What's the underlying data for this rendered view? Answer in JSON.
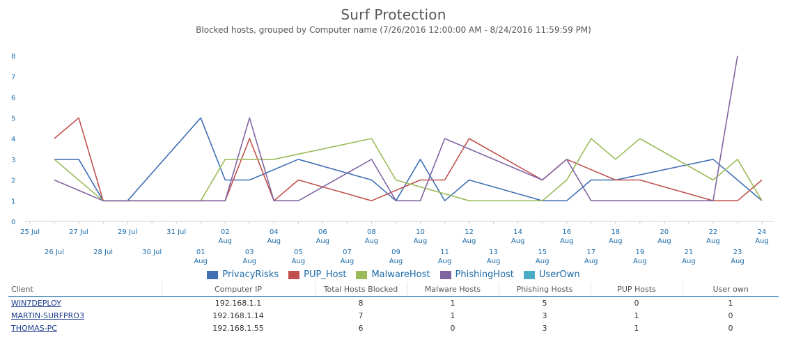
{
  "title": "Surf Protection",
  "subtitle": "Blocked hosts, grouped by Computer name (7/26/2016 12:00:00 AM - 8/24/2016 11:59:59 PM)",
  "colors": {
    "PrivacyRisks": "#3f6fb5",
    "PUP_Host": "#c0504d",
    "MalwareHost": "#9bbb59",
    "PhishingHost": "#8064a2",
    "UserOwn": "#4bacc6",
    "axis_text": "#1a6aa8"
  },
  "chart_data": {
    "type": "line",
    "title": "Surf Protection",
    "subtitle": "Blocked hosts, grouped by Computer name (7/26/2016 12:00:00 AM - 8/24/2016 11:59:59 PM)",
    "x": [
      "25 Jul",
      "26 Jul",
      "27 Jul",
      "28 Jul",
      "29 Jul",
      "30 Jul",
      "31 Jul",
      "01 Aug",
      "02 Aug",
      "03 Aug",
      "04 Aug",
      "05 Aug",
      "06 Aug",
      "07 Aug",
      "08 Aug",
      "09 Aug",
      "10 Aug",
      "11 Aug",
      "12 Aug",
      "13 Aug",
      "14 Aug",
      "15 Aug",
      "16 Aug",
      "17 Aug",
      "18 Aug",
      "19 Aug",
      "20 Aug",
      "21 Aug",
      "22 Aug",
      "23 Aug",
      "24 Aug"
    ],
    "tick_labels": [
      [
        "25 Jul",
        ""
      ],
      [
        "26 Jul",
        ""
      ],
      [
        "27 Jul",
        ""
      ],
      [
        "28 Jul",
        ""
      ],
      [
        "29 Jul",
        ""
      ],
      [
        "30 Jul",
        ""
      ],
      [
        "31 Jul",
        ""
      ],
      [
        "01",
        "Aug"
      ],
      [
        "02",
        "Aug"
      ],
      [
        "03",
        "Aug"
      ],
      [
        "04",
        "Aug"
      ],
      [
        "05",
        "Aug"
      ],
      [
        "06",
        "Aug"
      ],
      [
        "07",
        "Aug"
      ],
      [
        "08",
        "Aug"
      ],
      [
        "09",
        "Aug"
      ],
      [
        "10",
        "Aug"
      ],
      [
        "11",
        "Aug"
      ],
      [
        "12",
        "Aug"
      ],
      [
        "13",
        "Aug"
      ],
      [
        "14",
        "Aug"
      ],
      [
        "15",
        "Aug"
      ],
      [
        "16",
        "Aug"
      ],
      [
        "17",
        "Aug"
      ],
      [
        "18",
        "Aug"
      ],
      [
        "19",
        "Aug"
      ],
      [
        "20",
        "Aug"
      ],
      [
        "21",
        "Aug"
      ],
      [
        "22",
        "Aug"
      ],
      [
        "23",
        "Aug"
      ],
      [
        "24",
        "Aug"
      ]
    ],
    "series": [
      {
        "name": "PrivacyRisks",
        "points": [
          [
            "26 Jul",
            3
          ],
          [
            "27 Jul",
            3
          ],
          [
            "28 Jul",
            1
          ],
          [
            "29 Jul",
            1
          ],
          [
            "01 Aug",
            5
          ],
          [
            "02 Aug",
            2
          ],
          [
            "03 Aug",
            2
          ],
          [
            "05 Aug",
            3
          ],
          [
            "08 Aug",
            2
          ],
          [
            "09 Aug",
            1
          ],
          [
            "10 Aug",
            3
          ],
          [
            "11 Aug",
            1
          ],
          [
            "12 Aug",
            2
          ],
          [
            "15 Aug",
            1
          ],
          [
            "16 Aug",
            1
          ],
          [
            "17 Aug",
            2
          ],
          [
            "18 Aug",
            2
          ],
          [
            "22 Aug",
            3
          ],
          [
            "24 Aug",
            1
          ]
        ]
      },
      {
        "name": "PUP_Host",
        "points": [
          [
            "26 Jul",
            4
          ],
          [
            "27 Jul",
            5
          ],
          [
            "28 Jul",
            1
          ],
          [
            "02 Aug",
            1
          ],
          [
            "03 Aug",
            4
          ],
          [
            "04 Aug",
            1
          ],
          [
            "05 Aug",
            2
          ],
          [
            "08 Aug",
            1
          ],
          [
            "10 Aug",
            2
          ],
          [
            "11 Aug",
            2
          ],
          [
            "12 Aug",
            4
          ],
          [
            "15 Aug",
            2
          ],
          [
            "16 Aug",
            3
          ],
          [
            "18 Aug",
            2
          ],
          [
            "19 Aug",
            2
          ],
          [
            "22 Aug",
            1
          ],
          [
            "23 Aug",
            1
          ],
          [
            "24 Aug",
            2
          ]
        ]
      },
      {
        "name": "MalwareHost",
        "points": [
          [
            "26 Jul",
            3
          ],
          [
            "28 Jul",
            1
          ],
          [
            "01 Aug",
            1
          ],
          [
            "02 Aug",
            3
          ],
          [
            "04 Aug",
            3
          ],
          [
            "08 Aug",
            4
          ],
          [
            "09 Aug",
            2
          ],
          [
            "12 Aug",
            1
          ],
          [
            "15 Aug",
            1
          ],
          [
            "16 Aug",
            2
          ],
          [
            "17 Aug",
            4
          ],
          [
            "18 Aug",
            3
          ],
          [
            "19 Aug",
            4
          ],
          [
            "22 Aug",
            2
          ],
          [
            "23 Aug",
            3
          ],
          [
            "24 Aug",
            1
          ]
        ]
      },
      {
        "name": "PhishingHost",
        "points": [
          [
            "26 Jul",
            2
          ],
          [
            "28 Jul",
            1
          ],
          [
            "02 Aug",
            1
          ],
          [
            "03 Aug",
            5
          ],
          [
            "04 Aug",
            1
          ],
          [
            "05 Aug",
            1
          ],
          [
            "08 Aug",
            3
          ],
          [
            "09 Aug",
            1
          ],
          [
            "10 Aug",
            1
          ],
          [
            "11 Aug",
            4
          ],
          [
            "15 Aug",
            2
          ],
          [
            "16 Aug",
            3
          ],
          [
            "17 Aug",
            1
          ],
          [
            "22 Aug",
            1
          ],
          [
            "23 Aug",
            8
          ]
        ]
      },
      {
        "name": "UserOwn",
        "points": []
      }
    ],
    "ylim": [
      0,
      8
    ],
    "yticks": [
      0,
      1,
      2,
      3,
      4,
      5,
      6,
      7,
      8
    ],
    "grid": false,
    "legend": "bottom-center"
  },
  "legend": [
    "PrivacyRisks",
    "PUP_Host",
    "MalwareHost",
    "PhishingHost",
    "UserOwn"
  ],
  "table": {
    "headers": [
      "Client",
      "Computer IP",
      "Total Hosts Blocked",
      "Malware Hosts",
      "Phishing Hosts",
      "PUP Hosts",
      "User own"
    ],
    "rows": [
      [
        "WIN7DEPLOY",
        "192.168.1.1",
        "8",
        "1",
        "5",
        "0",
        "1"
      ],
      [
        "MARTIN-SURFPRO3",
        "192.168.1.14",
        "7",
        "1",
        "3",
        "1",
        "0"
      ],
      [
        "THOMAS-PC",
        "192.168.1.55",
        "6",
        "0",
        "3",
        "1",
        "0"
      ]
    ]
  }
}
